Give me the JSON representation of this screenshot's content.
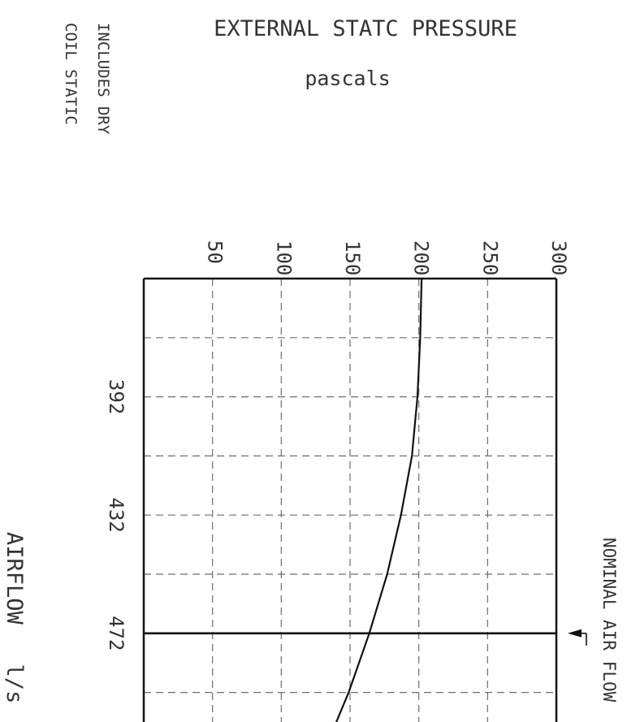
{
  "chart_data": {
    "type": "line",
    "title": "EXTERNAL STATC PRESSURE",
    "subtitle": "pascals",
    "note_lines": [
      "INCLUDES DRY",
      "COIL STATIC"
    ],
    "xlabel": "AIRFLOW   l/s",
    "ylabel": "",
    "pressure_ticks": [
      50,
      100,
      150,
      200,
      250,
      300
    ],
    "pressure_range": [
      0,
      300
    ],
    "airflow_ticks": [
      392,
      432,
      472
    ],
    "airflow_range": [
      352,
      502
    ],
    "grid": true,
    "nominal_airflow": 472,
    "nominal_label": "NOMINAL AIR FLOW",
    "series": [
      {
        "points": [
          {
            "airflow": 352,
            "pressure": 202
          },
          {
            "airflow": 372,
            "pressure": 201
          },
          {
            "airflow": 392,
            "pressure": 199
          },
          {
            "airflow": 412,
            "pressure": 195
          },
          {
            "airflow": 432,
            "pressure": 187
          },
          {
            "airflow": 452,
            "pressure": 177
          },
          {
            "airflow": 472,
            "pressure": 164
          },
          {
            "airflow": 492,
            "pressure": 149
          },
          {
            "airflow": 502,
            "pressure": 140
          }
        ]
      }
    ]
  }
}
